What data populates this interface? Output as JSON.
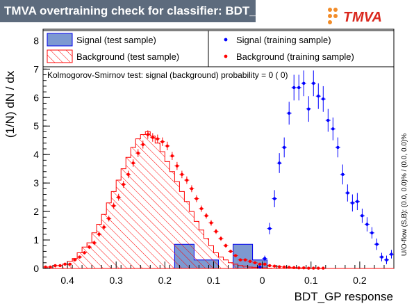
{
  "header": {
    "title": "TMVA overtraining check for classifier: BDT_GP",
    "logo_text": "MVA",
    "logo_letter": "T"
  },
  "colors": {
    "title_bar": "#5d6b7d",
    "signal_fill": "#7d99d1",
    "signal_line": "#0000ee",
    "background_hatch": "#ff0000",
    "signal_marker": "#0000ff",
    "background_marker": "#ff0000",
    "logo_orange": "#f28c28",
    "logo_red": "#d9261c"
  },
  "legend": {
    "signal_test": "Signal (test sample)",
    "signal_train": "Signal (training sample)",
    "background_test": "Background (test sample)",
    "background_train": "Background (training sample)"
  },
  "ks_text": "Kolmogorov-Smirnov test: signal (background) probability =    0 (    0)",
  "side_text": "U/O-flow (S,B): (0.0, 0.0)% / (0.0, 0.0)%",
  "chart_data": {
    "type": "bar",
    "xlabel": "BDT_GP response",
    "ylabel": "(1/N) dN / dx",
    "xlim": [
      -0.45,
      0.27
    ],
    "ylim": [
      0,
      8.4
    ],
    "x_ticks": [
      -0.4,
      -0.3,
      -0.2,
      -0.1,
      0,
      0.1,
      0.2
    ],
    "x_tick_labels": [
      "0.4",
      "0.3",
      "0.2",
      "0.1",
      "0",
      "0.1",
      "0.2"
    ],
    "y_ticks": [
      0,
      1,
      2,
      3,
      4,
      5,
      6,
      7,
      8
    ],
    "bin_width": 0.01,
    "bin_start": -0.45,
    "series": [
      {
        "name": "Signal (test sample)",
        "kind": "hist-filled",
        "values": [
          0,
          0,
          0,
          0,
          0,
          0,
          0,
          0,
          0,
          0,
          0,
          0,
          0,
          0,
          0,
          0,
          0,
          0,
          0,
          0,
          0,
          0,
          0,
          0,
          0,
          0,
          0,
          0.85,
          0.85,
          0.85,
          0.85,
          0.3,
          0.3,
          0.3,
          0.3,
          0.3,
          0,
          0,
          0,
          0.85,
          0.85,
          0.85,
          0.85,
          0.3,
          0.3,
          0.3,
          0,
          0,
          0,
          0,
          0,
          0,
          0,
          0,
          0,
          0,
          0,
          0,
          0,
          0,
          0,
          0,
          0,
          0,
          0,
          0,
          0,
          0,
          0,
          0,
          0,
          0
        ]
      },
      {
        "name": "Background (test sample)",
        "kind": "hist-hatched",
        "values": [
          0.05,
          0.05,
          0.1,
          0.1,
          0.15,
          0.25,
          0.35,
          0.55,
          0.75,
          0.9,
          1.25,
          1.55,
          1.9,
          2.3,
          2.7,
          3.1,
          3.5,
          3.9,
          4.25,
          4.55,
          4.7,
          4.8,
          4.65,
          4.4,
          4.1,
          3.75,
          3.4,
          3.05,
          2.7,
          2.35,
          2.0,
          1.65,
          1.35,
          1.05,
          0.8,
          0.55,
          0.4,
          0.3,
          0.2,
          0.15,
          0.1,
          0.08,
          0.05,
          0.04,
          0.03,
          0.02,
          0.01,
          0,
          0,
          0,
          0,
          0,
          0,
          0,
          0,
          0,
          0,
          0,
          0,
          0,
          0,
          0,
          0,
          0,
          0,
          0,
          0,
          0,
          0,
          0,
          0,
          0
        ]
      },
      {
        "name": "Signal (training sample)",
        "kind": "points-errors",
        "x": [
          -0.005,
          0.005,
          0.015,
          0.025,
          0.035,
          0.045,
          0.055,
          0.065,
          0.075,
          0.085,
          0.095,
          0.105,
          0.115,
          0.125,
          0.135,
          0.145,
          0.155,
          0.165,
          0.175,
          0.185,
          0.195,
          0.205,
          0.215,
          0.225,
          0.235,
          0.245,
          0.255,
          0.265
        ],
        "y": [
          0.05,
          0.35,
          1.4,
          2.45,
          3.7,
          4.25,
          5.45,
          6.35,
          6.35,
          6.5,
          5.6,
          6.5,
          6.05,
          5.95,
          5.2,
          4.9,
          4.25,
          3.3,
          2.65,
          2.3,
          2.35,
          1.85,
          1.55,
          1.25,
          0.85,
          0.4,
          0.3,
          0.5
        ],
        "err": [
          0.05,
          0.1,
          0.2,
          0.3,
          0.35,
          0.35,
          0.4,
          0.45,
          0.45,
          0.45,
          0.45,
          0.45,
          0.45,
          0.45,
          0.4,
          0.4,
          0.35,
          0.35,
          0.3,
          0.3,
          0.3,
          0.25,
          0.25,
          0.2,
          0.2,
          0.15,
          0.15,
          0.15
        ]
      },
      {
        "name": "Background (training sample)",
        "kind": "points-errors",
        "x": [
          -0.445,
          -0.435,
          -0.425,
          -0.415,
          -0.405,
          -0.395,
          -0.385,
          -0.375,
          -0.365,
          -0.355,
          -0.345,
          -0.335,
          -0.325,
          -0.315,
          -0.305,
          -0.295,
          -0.285,
          -0.275,
          -0.265,
          -0.255,
          -0.245,
          -0.235,
          -0.225,
          -0.215,
          -0.205,
          -0.195,
          -0.185,
          -0.175,
          -0.165,
          -0.155,
          -0.145,
          -0.135,
          -0.125,
          -0.115,
          -0.105,
          -0.095,
          -0.085,
          -0.075,
          -0.065,
          -0.055,
          -0.045,
          -0.035,
          -0.025,
          -0.015,
          -0.005,
          0.005,
          0.015,
          0.025,
          0.035,
          0.045,
          0.055,
          0.065,
          0.075,
          0.085,
          0.095,
          0.105,
          0.115,
          0.125
        ],
        "y": [
          0.05,
          0.05,
          0.1,
          0.1,
          0.15,
          0.15,
          0.3,
          0.4,
          0.55,
          0.75,
          0.9,
          1.2,
          1.45,
          1.75,
          2.2,
          2.5,
          2.95,
          3.3,
          3.7,
          4.05,
          4.35,
          4.7,
          4.6,
          4.55,
          4.45,
          4.3,
          3.95,
          3.6,
          3.3,
          3.1,
          2.8,
          2.45,
          2.1,
          1.85,
          1.6,
          1.3,
          1.05,
          0.8,
          0.6,
          0.45,
          0.3,
          0.3,
          0.25,
          0.2,
          0.15,
          0.15,
          0.1,
          0.08,
          0.06,
          0.05,
          0.04,
          0.03,
          0.02,
          0.02,
          0.01,
          0.01,
          0.01,
          0.01
        ],
        "err": [
          0.02,
          0.02,
          0.03,
          0.03,
          0.04,
          0.04,
          0.05,
          0.05,
          0.06,
          0.07,
          0.08,
          0.09,
          0.1,
          0.1,
          0.11,
          0.12,
          0.12,
          0.13,
          0.13,
          0.14,
          0.14,
          0.15,
          0.15,
          0.15,
          0.15,
          0.15,
          0.14,
          0.14,
          0.13,
          0.13,
          0.12,
          0.12,
          0.11,
          0.1,
          0.1,
          0.09,
          0.08,
          0.07,
          0.06,
          0.05,
          0.05,
          0.05,
          0.04,
          0.04,
          0.03,
          0.03,
          0.03,
          0.02,
          0.02,
          0.02,
          0.02,
          0.01,
          0.01,
          0.01,
          0.01,
          0.01,
          0.01,
          0.01
        ]
      }
    ]
  }
}
